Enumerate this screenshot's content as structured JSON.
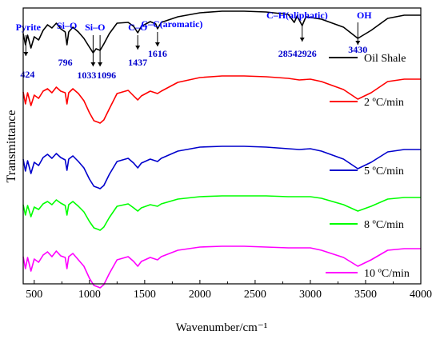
{
  "chart_data": {
    "type": "line",
    "xlabel": "Wavenumber/cm⁻¹",
    "ylabel": "Transmittance",
    "xlim": [
      400,
      4000
    ],
    "x_ticks": [
      500,
      1000,
      1500,
      2000,
      2500,
      3000,
      3500,
      4000
    ],
    "y_ticks": [],
    "grid": false,
    "legend": "right, beside each curve",
    "series": [
      {
        "name": "Oil Shale",
        "color": "#000000",
        "points": [
          [
            400,
            4.8
          ],
          [
            420,
            3.4
          ],
          [
            440,
            4.6
          ],
          [
            470,
            3.0
          ],
          [
            500,
            4.4
          ],
          [
            540,
            4.0
          ],
          [
            580,
            5.2
          ],
          [
            620,
            5.9
          ],
          [
            660,
            5.5
          ],
          [
            700,
            6.1
          ],
          [
            740,
            5.4
          ],
          [
            780,
            5.0
          ],
          [
            796,
            3.4
          ],
          [
            812,
            5.0
          ],
          [
            850,
            5.6
          ],
          [
            900,
            5.0
          ],
          [
            950,
            4.2
          ],
          [
            1000,
            3.1
          ],
          [
            1033,
            2.4
          ],
          [
            1060,
            2.9
          ],
          [
            1096,
            2.7
          ],
          [
            1130,
            3.5
          ],
          [
            1180,
            4.8
          ],
          [
            1250,
            6.1
          ],
          [
            1350,
            6.2
          ],
          [
            1400,
            5.7
          ],
          [
            1437,
            4.9
          ],
          [
            1470,
            5.7
          ],
          [
            1550,
            6.3
          ],
          [
            1600,
            6.0
          ],
          [
            1616,
            5.4
          ],
          [
            1650,
            6.2
          ],
          [
            1800,
            6.9
          ],
          [
            2000,
            7.4
          ],
          [
            2200,
            7.6
          ],
          [
            2400,
            7.6
          ],
          [
            2600,
            7.5
          ],
          [
            2800,
            7.2
          ],
          [
            2854,
            6.2
          ],
          [
            2880,
            7.0
          ],
          [
            2926,
            5.8
          ],
          [
            2960,
            6.9
          ],
          [
            3100,
            6.6
          ],
          [
            3300,
            5.6
          ],
          [
            3430,
            4.2
          ],
          [
            3550,
            5.2
          ],
          [
            3700,
            6.7
          ],
          [
            3850,
            7.1
          ],
          [
            4000,
            7.1
          ]
        ]
      },
      {
        "name": "2 ºC/min",
        "color": "#ff0000",
        "points": [
          [
            400,
            4.5
          ],
          [
            420,
            3.0
          ],
          [
            440,
            4.4
          ],
          [
            470,
            2.8
          ],
          [
            500,
            4.1
          ],
          [
            540,
            3.7
          ],
          [
            580,
            4.6
          ],
          [
            620,
            4.9
          ],
          [
            660,
            4.4
          ],
          [
            700,
            5.1
          ],
          [
            740,
            4.6
          ],
          [
            780,
            4.4
          ],
          [
            796,
            3.0
          ],
          [
            812,
            4.4
          ],
          [
            850,
            4.9
          ],
          [
            900,
            4.3
          ],
          [
            950,
            3.4
          ],
          [
            1000,
            1.9
          ],
          [
            1040,
            0.9
          ],
          [
            1080,
            0.7
          ],
          [
            1096,
            0.6
          ],
          [
            1130,
            1.0
          ],
          [
            1180,
            2.4
          ],
          [
            1250,
            4.3
          ],
          [
            1350,
            4.7
          ],
          [
            1400,
            4.0
          ],
          [
            1437,
            3.5
          ],
          [
            1470,
            4.0
          ],
          [
            1550,
            4.6
          ],
          [
            1616,
            4.3
          ],
          [
            1650,
            4.6
          ],
          [
            1800,
            5.7
          ],
          [
            2000,
            6.3
          ],
          [
            2200,
            6.5
          ],
          [
            2400,
            6.5
          ],
          [
            2600,
            6.4
          ],
          [
            2800,
            6.2
          ],
          [
            2900,
            6.0
          ],
          [
            3000,
            6.1
          ],
          [
            3100,
            5.8
          ],
          [
            3300,
            4.8
          ],
          [
            3430,
            3.6
          ],
          [
            3550,
            4.4
          ],
          [
            3700,
            5.8
          ],
          [
            3850,
            6.1
          ],
          [
            4000,
            6.1
          ]
        ]
      },
      {
        "name": "5 ºC/min",
        "color": "#0000cc",
        "points": [
          [
            400,
            4.4
          ],
          [
            420,
            2.9
          ],
          [
            440,
            4.2
          ],
          [
            470,
            2.6
          ],
          [
            500,
            4.0
          ],
          [
            540,
            3.6
          ],
          [
            580,
            4.6
          ],
          [
            620,
            5.0
          ],
          [
            660,
            4.5
          ],
          [
            700,
            5.1
          ],
          [
            740,
            4.6
          ],
          [
            780,
            4.3
          ],
          [
            796,
            3.0
          ],
          [
            812,
            4.4
          ],
          [
            850,
            4.8
          ],
          [
            900,
            4.1
          ],
          [
            950,
            3.3
          ],
          [
            1000,
            1.9
          ],
          [
            1040,
            1.0
          ],
          [
            1080,
            0.8
          ],
          [
            1096,
            0.7
          ],
          [
            1130,
            1.1
          ],
          [
            1180,
            2.5
          ],
          [
            1250,
            4.1
          ],
          [
            1350,
            4.5
          ],
          [
            1400,
            3.9
          ],
          [
            1437,
            3.3
          ],
          [
            1470,
            3.9
          ],
          [
            1550,
            4.4
          ],
          [
            1616,
            4.1
          ],
          [
            1650,
            4.5
          ],
          [
            1800,
            5.4
          ],
          [
            2000,
            5.9
          ],
          [
            2200,
            6.0
          ],
          [
            2400,
            6.0
          ],
          [
            2600,
            5.9
          ],
          [
            2800,
            5.7
          ],
          [
            2900,
            5.6
          ],
          [
            3000,
            5.7
          ],
          [
            3100,
            5.4
          ],
          [
            3300,
            4.4
          ],
          [
            3430,
            3.2
          ],
          [
            3550,
            4.0
          ],
          [
            3700,
            5.3
          ],
          [
            3850,
            5.6
          ],
          [
            4000,
            5.6
          ]
        ]
      },
      {
        "name": "8 ºC/min",
        "color": "#00ff00",
        "points": [
          [
            400,
            4.3
          ],
          [
            420,
            3.0
          ],
          [
            440,
            4.2
          ],
          [
            470,
            2.8
          ],
          [
            500,
            4.0
          ],
          [
            540,
            3.7
          ],
          [
            580,
            4.4
          ],
          [
            620,
            4.7
          ],
          [
            660,
            4.3
          ],
          [
            700,
            4.9
          ],
          [
            740,
            4.5
          ],
          [
            780,
            4.2
          ],
          [
            796,
            3.0
          ],
          [
            812,
            4.3
          ],
          [
            850,
            4.7
          ],
          [
            900,
            4.1
          ],
          [
            950,
            3.4
          ],
          [
            1000,
            2.2
          ],
          [
            1040,
            1.4
          ],
          [
            1080,
            1.2
          ],
          [
            1096,
            1.1
          ],
          [
            1130,
            1.5
          ],
          [
            1180,
            2.7
          ],
          [
            1250,
            4.1
          ],
          [
            1350,
            4.4
          ],
          [
            1400,
            3.9
          ],
          [
            1437,
            3.5
          ],
          [
            1470,
            3.9
          ],
          [
            1550,
            4.3
          ],
          [
            1616,
            4.1
          ],
          [
            1650,
            4.4
          ],
          [
            1800,
            5.0
          ],
          [
            2000,
            5.3
          ],
          [
            2200,
            5.4
          ],
          [
            2400,
            5.4
          ],
          [
            2600,
            5.4
          ],
          [
            2800,
            5.3
          ],
          [
            3000,
            5.3
          ],
          [
            3100,
            5.1
          ],
          [
            3300,
            4.3
          ],
          [
            3430,
            3.5
          ],
          [
            3550,
            4.1
          ],
          [
            3700,
            5.0
          ],
          [
            3850,
            5.2
          ],
          [
            4000,
            5.2
          ]
        ]
      },
      {
        "name": "10 ºC/min",
        "color": "#ff00ff",
        "points": [
          [
            400,
            4.4
          ],
          [
            420,
            2.9
          ],
          [
            440,
            4.3
          ],
          [
            470,
            2.6
          ],
          [
            500,
            4.1
          ],
          [
            540,
            3.7
          ],
          [
            580,
            4.6
          ],
          [
            620,
            5.0
          ],
          [
            660,
            4.4
          ],
          [
            700,
            5.1
          ],
          [
            740,
            4.5
          ],
          [
            780,
            4.3
          ],
          [
            796,
            2.9
          ],
          [
            812,
            4.4
          ],
          [
            850,
            4.8
          ],
          [
            900,
            4.0
          ],
          [
            950,
            3.2
          ],
          [
            1000,
            1.7
          ],
          [
            1040,
            0.8
          ],
          [
            1080,
            0.6
          ],
          [
            1096,
            0.5
          ],
          [
            1130,
            0.9
          ],
          [
            1180,
            2.3
          ],
          [
            1250,
            4.0
          ],
          [
            1350,
            4.4
          ],
          [
            1400,
            3.8
          ],
          [
            1437,
            3.2
          ],
          [
            1470,
            3.8
          ],
          [
            1550,
            4.3
          ],
          [
            1616,
            4.0
          ],
          [
            1650,
            4.4
          ],
          [
            1800,
            5.2
          ],
          [
            2000,
            5.6
          ],
          [
            2200,
            5.7
          ],
          [
            2400,
            5.7
          ],
          [
            2600,
            5.6
          ],
          [
            2800,
            5.5
          ],
          [
            3000,
            5.5
          ],
          [
            3100,
            5.2
          ],
          [
            3300,
            4.3
          ],
          [
            3430,
            3.2
          ],
          [
            3550,
            4.0
          ],
          [
            3700,
            5.2
          ],
          [
            3850,
            5.4
          ],
          [
            4000,
            5.4
          ]
        ]
      }
    ],
    "annotations": [
      {
        "text": "Pyrite",
        "x": 424,
        "color": "#0000ff"
      },
      {
        "text": "Si–O",
        "x": 796,
        "color": "#0000ff"
      },
      {
        "text": "Si–O",
        "x": 1050,
        "color": "#0000ff"
      },
      {
        "text": "C–O",
        "x": 1437,
        "color": "#0000ff"
      },
      {
        "text": "C–C(aromatic)",
        "x": 1616,
        "color": "#0000ff"
      },
      {
        "text": "C–H(aliphatic)",
        "x": 2880,
        "color": "#0000ff"
      },
      {
        "text": "OH",
        "x": 3430,
        "color": "#0000ff"
      }
    ],
    "peak_labels": [
      {
        "text": "424",
        "x": 424
      },
      {
        "text": "796",
        "x": 796
      },
      {
        "text": "1033",
        "x": 1033
      },
      {
        "text": "1096",
        "x": 1096
      },
      {
        "text": "1437",
        "x": 1437
      },
      {
        "text": "1616",
        "x": 1616
      },
      {
        "text": "2854",
        "x": 2854
      },
      {
        "text": "2926",
        "x": 2926
      },
      {
        "text": "3430",
        "x": 3430
      }
    ]
  }
}
